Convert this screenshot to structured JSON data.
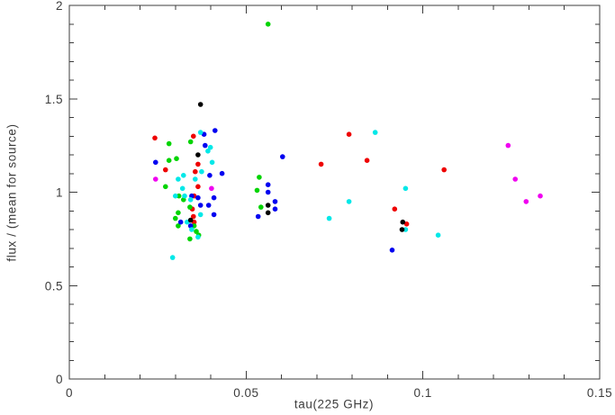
{
  "figure": {
    "background": "#ffffff",
    "axis_color": "#3c3c3c",
    "tick_label_color": "#3c3c3c"
  },
  "chart_data": {
    "type": "scatter",
    "title": "",
    "xlabel": "tau(225 GHz)",
    "ylabel": "flux / (mean for source)",
    "xlim": [
      0,
      0.15
    ],
    "ylim": [
      0,
      2
    ],
    "x_major_ticks": [
      0,
      0.05,
      0.1,
      0.15
    ],
    "x_major_tick_labels": [
      "0",
      "0.05",
      "0.1",
      "0.15"
    ],
    "x_minor_tick_interval": 0.01,
    "y_major_ticks": [
      0,
      0.5,
      1,
      1.5,
      2
    ],
    "y_major_tick_labels": [
      "0",
      "0.5",
      "1",
      "1.5",
      "2"
    ],
    "y_minor_tick_interval": 0.1,
    "grid": false,
    "legend": "none",
    "marker": "filled-circle",
    "series": [
      {
        "name": "red",
        "color": "#ee0000",
        "points": [
          [
            0.0242,
            1.29
          ],
          [
            0.0351,
            1.3
          ],
          [
            0.0272,
            1.12
          ],
          [
            0.0364,
            1.15
          ],
          [
            0.0356,
            1.11
          ],
          [
            0.0364,
            1.03
          ],
          [
            0.0353,
            0.98
          ],
          [
            0.0348,
            0.91
          ],
          [
            0.0351,
            0.87
          ],
          [
            0.0353,
            0.84
          ],
          [
            0.0712,
            1.15
          ],
          [
            0.0791,
            1.31
          ],
          [
            0.0842,
            1.17
          ],
          [
            0.106,
            1.12
          ],
          [
            0.092,
            0.91
          ],
          [
            0.0954,
            0.83
          ]
        ]
      },
      {
        "name": "green",
        "color": "#00d400",
        "points": [
          [
            0.0562,
            1.9
          ],
          [
            0.0282,
            1.26
          ],
          [
            0.0343,
            1.27
          ],
          [
            0.0282,
            1.17
          ],
          [
            0.0303,
            1.18
          ],
          [
            0.0272,
            1.03
          ],
          [
            0.031,
            0.98
          ],
          [
            0.0323,
            0.96
          ],
          [
            0.0341,
            0.92
          ],
          [
            0.0308,
            0.89
          ],
          [
            0.03,
            0.86
          ],
          [
            0.0353,
            0.82
          ],
          [
            0.0308,
            0.82
          ],
          [
            0.0359,
            0.79
          ],
          [
            0.0341,
            0.75
          ],
          [
            0.0366,
            0.77
          ],
          [
            0.0537,
            1.08
          ],
          [
            0.0531,
            1.01
          ],
          [
            0.0542,
            0.92
          ]
        ]
      },
      {
        "name": "blue",
        "color": "#0000f0",
        "points": [
          [
            0.0381,
            1.31
          ],
          [
            0.0412,
            1.33
          ],
          [
            0.0384,
            1.25
          ],
          [
            0.0244,
            1.16
          ],
          [
            0.0397,
            1.09
          ],
          [
            0.0432,
            1.1
          ],
          [
            0.0346,
            0.98
          ],
          [
            0.0409,
            0.97
          ],
          [
            0.0364,
            0.97
          ],
          [
            0.0371,
            0.93
          ],
          [
            0.0394,
            0.93
          ],
          [
            0.0409,
            0.88
          ],
          [
            0.0315,
            0.84
          ],
          [
            0.0343,
            0.82
          ],
          [
            0.0603,
            1.19
          ],
          [
            0.0562,
            1.04
          ],
          [
            0.0562,
            1.0
          ],
          [
            0.0582,
            0.95
          ],
          [
            0.0582,
            0.91
          ],
          [
            0.0534,
            0.87
          ],
          [
            0.0913,
            0.69
          ]
        ]
      },
      {
        "name": "cyan",
        "color": "#00e8e8",
        "points": [
          [
            0.0371,
            1.32
          ],
          [
            0.0399,
            1.24
          ],
          [
            0.0392,
            1.22
          ],
          [
            0.0404,
            1.16
          ],
          [
            0.0374,
            1.11
          ],
          [
            0.0323,
            1.09
          ],
          [
            0.0308,
            1.07
          ],
          [
            0.0356,
            1.07
          ],
          [
            0.032,
            1.02
          ],
          [
            0.03,
            0.98
          ],
          [
            0.0326,
            0.98
          ],
          [
            0.0343,
            0.96
          ],
          [
            0.0371,
            0.88
          ],
          [
            0.0333,
            0.84
          ],
          [
            0.0346,
            0.8
          ],
          [
            0.0364,
            0.76
          ],
          [
            0.0292,
            0.65
          ],
          [
            0.0865,
            1.32
          ],
          [
            0.0951,
            1.02
          ],
          [
            0.0791,
            0.95
          ],
          [
            0.0735,
            0.86
          ],
          [
            0.0951,
            0.8
          ],
          [
            0.1043,
            0.77
          ]
        ]
      },
      {
        "name": "magenta",
        "color": "#f000f0",
        "points": [
          [
            0.0244,
            1.07
          ],
          [
            0.0402,
            1.02
          ],
          [
            0.1241,
            1.25
          ],
          [
            0.1261,
            1.07
          ],
          [
            0.1332,
            0.98
          ],
          [
            0.1292,
            0.95
          ]
        ]
      },
      {
        "name": "black",
        "color": "#000000",
        "points": [
          [
            0.0371,
            1.47
          ],
          [
            0.0364,
            1.2
          ],
          [
            0.0343,
            0.85
          ],
          [
            0.0562,
            0.93
          ],
          [
            0.0562,
            0.89
          ],
          [
            0.0943,
            0.84
          ],
          [
            0.0941,
            0.8
          ]
        ]
      }
    ]
  }
}
